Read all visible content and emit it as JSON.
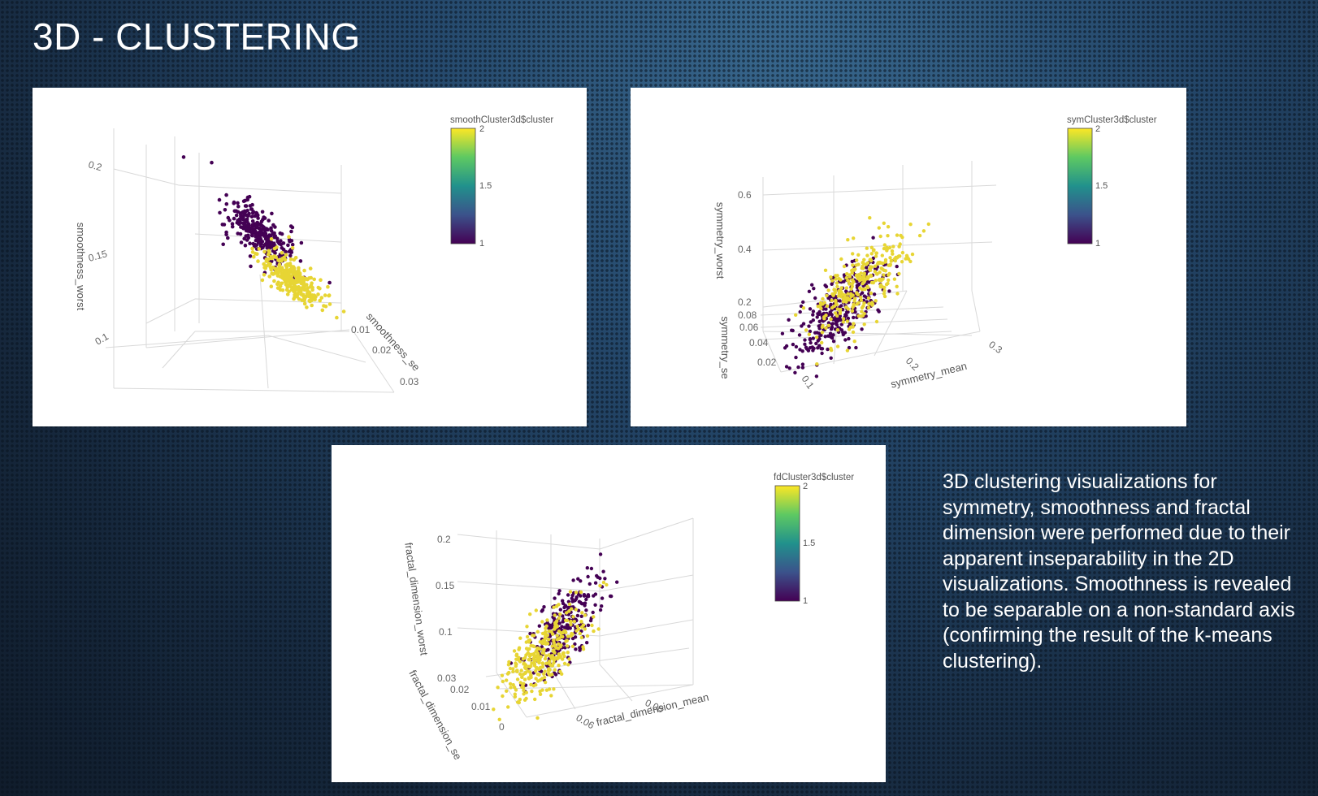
{
  "slide": {
    "title": "3D - CLUSTERING",
    "description": "3D clustering visualizations for symmetry, smoothness and fractal dimension were performed due to their apparent inseparability in the 2D visualizations. Smoothness is revealed to be separable on a non-standard axis (confirming the result of the k-means clustering)."
  },
  "colors": {
    "cluster_1": "#440154",
    "cluster_2": "#e7d534",
    "colorscale": [
      "#440154",
      "#3b528b",
      "#21918c",
      "#5ec962",
      "#fde725"
    ]
  },
  "chart_data": [
    {
      "type": "scatter",
      "title": "",
      "projection": "3d",
      "xlabel": "",
      "ylabel": "smoothness_se",
      "zlabel": "smoothness_worst",
      "y_ticks": [
        "0.01",
        "0.02",
        "0.03"
      ],
      "z_ticks": [
        "0.2",
        "0.15",
        "0.1"
      ],
      "zlim": [
        0.07,
        0.22
      ],
      "colorbar": {
        "title": "smoothCluster3d$cluster",
        "ticks": [
          "2",
          "1.5",
          "1"
        ],
        "range": [
          1,
          2
        ]
      },
      "series": [
        {
          "cluster": 1,
          "n": 300,
          "z_range": [
            0.125,
            0.21
          ]
        },
        {
          "cluster": 2,
          "n": 300,
          "z_range": [
            0.09,
            0.13
          ]
        }
      ]
    },
    {
      "type": "scatter",
      "title": "",
      "projection": "3d",
      "xlabel": "symmetry_mean",
      "ylabel": "symmetry_se",
      "zlabel": "symmetry_worst",
      "x_ticks": [
        "0.1",
        "0.2",
        "0.3"
      ],
      "y_ticks": [
        "0.02",
        "0.04",
        "0.06",
        "0.08"
      ],
      "z_ticks": [
        "0.6",
        "0.4",
        "0.2"
      ],
      "colorbar": {
        "title": "symCluster3d$cluster",
        "ticks": [
          "2",
          "1.5",
          "1"
        ],
        "range": [
          1,
          2
        ]
      },
      "series": [
        {
          "cluster": 1,
          "n": 320
        },
        {
          "cluster": 2,
          "n": 300
        }
      ]
    },
    {
      "type": "scatter",
      "title": "",
      "projection": "3d",
      "xlabel": "fractal_dimension_mean",
      "ylabel": "fractal_dimension_se",
      "zlabel": "fractal_dimension_worst",
      "x_ticks": [
        "0.06",
        "0.08"
      ],
      "y_ticks": [
        "0",
        "0.01",
        "0.02",
        "0.03"
      ],
      "z_ticks": [
        "0.2",
        "0.15",
        "0.1"
      ],
      "colorbar": {
        "title": "fdCluster3d$cluster",
        "ticks": [
          "2",
          "1.5",
          "1"
        ],
        "range": [
          1,
          2
        ]
      },
      "series": [
        {
          "cluster": 1,
          "n": 250
        },
        {
          "cluster": 2,
          "n": 320
        }
      ]
    }
  ]
}
